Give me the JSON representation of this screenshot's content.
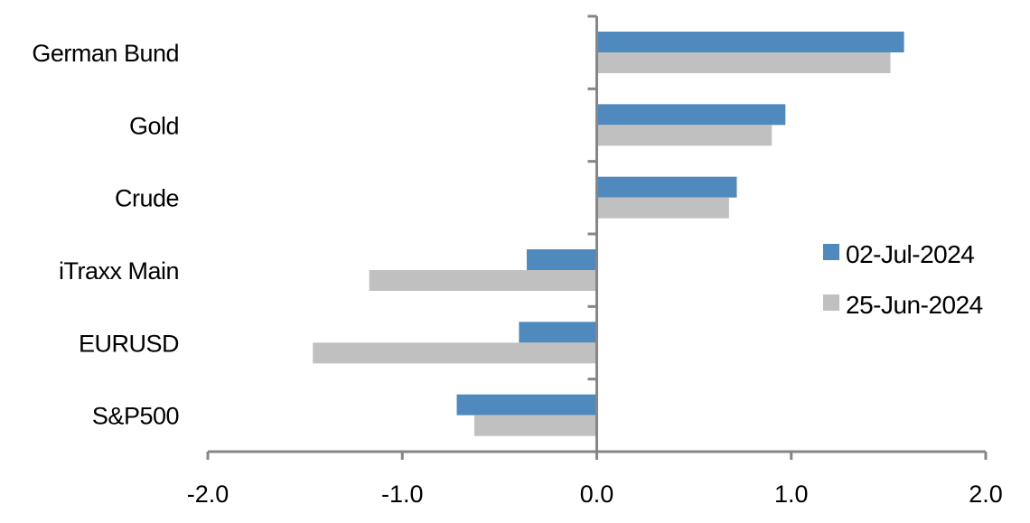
{
  "chart_data": {
    "type": "bar",
    "orientation": "horizontal",
    "categories": [
      "German Bund",
      "Gold",
      "Crude",
      "iTraxx Main",
      "EURUSD",
      "S&P500"
    ],
    "series": [
      {
        "name": "02-Jul-2024",
        "color": "#4f89bd",
        "values": [
          1.58,
          0.97,
          0.72,
          -0.36,
          -0.4,
          -0.72
        ]
      },
      {
        "name": "25-Jun-2024",
        "color": "#c0c0c0",
        "values": [
          1.51,
          0.9,
          0.68,
          -1.17,
          -1.46,
          -0.63
        ]
      }
    ],
    "xlim": [
      -2.0,
      2.0
    ],
    "xticks": [
      "-2.0",
      "-1.0",
      "0.0",
      "1.0",
      "2.0"
    ],
    "xtick_values": [
      -2,
      -1,
      0,
      1,
      2
    ],
    "title": "",
    "xlabel": "",
    "ylabel": "",
    "grid": false,
    "legend": "right"
  }
}
